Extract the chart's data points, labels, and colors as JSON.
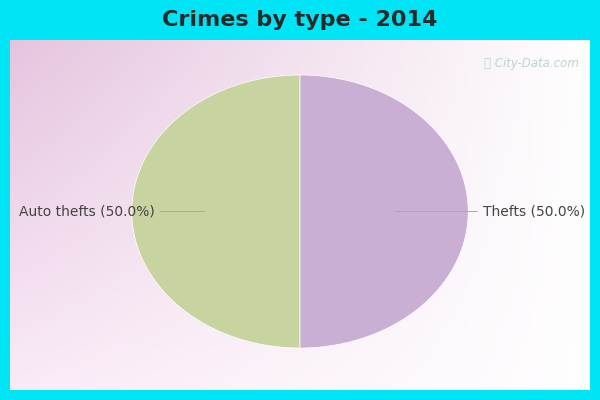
{
  "title": "Crimes by type - 2014",
  "slices": [
    50.0,
    50.0
  ],
  "labels": [
    "Auto thefts (50.0%)",
    "Thefts (50.0%)"
  ],
  "colors": [
    "#c8d4a0",
    "#c9afd4"
  ],
  "startangle": 90,
  "background_cyan": "#00e5f5",
  "background_inner": "#e0f5e8",
  "watermark": "ⓘ City-Data.com",
  "title_fontsize": 16,
  "label_fontsize": 10,
  "title_color": "#2a2a2a",
  "label_color": "#444444",
  "watermark_color": "#b0ccd0"
}
